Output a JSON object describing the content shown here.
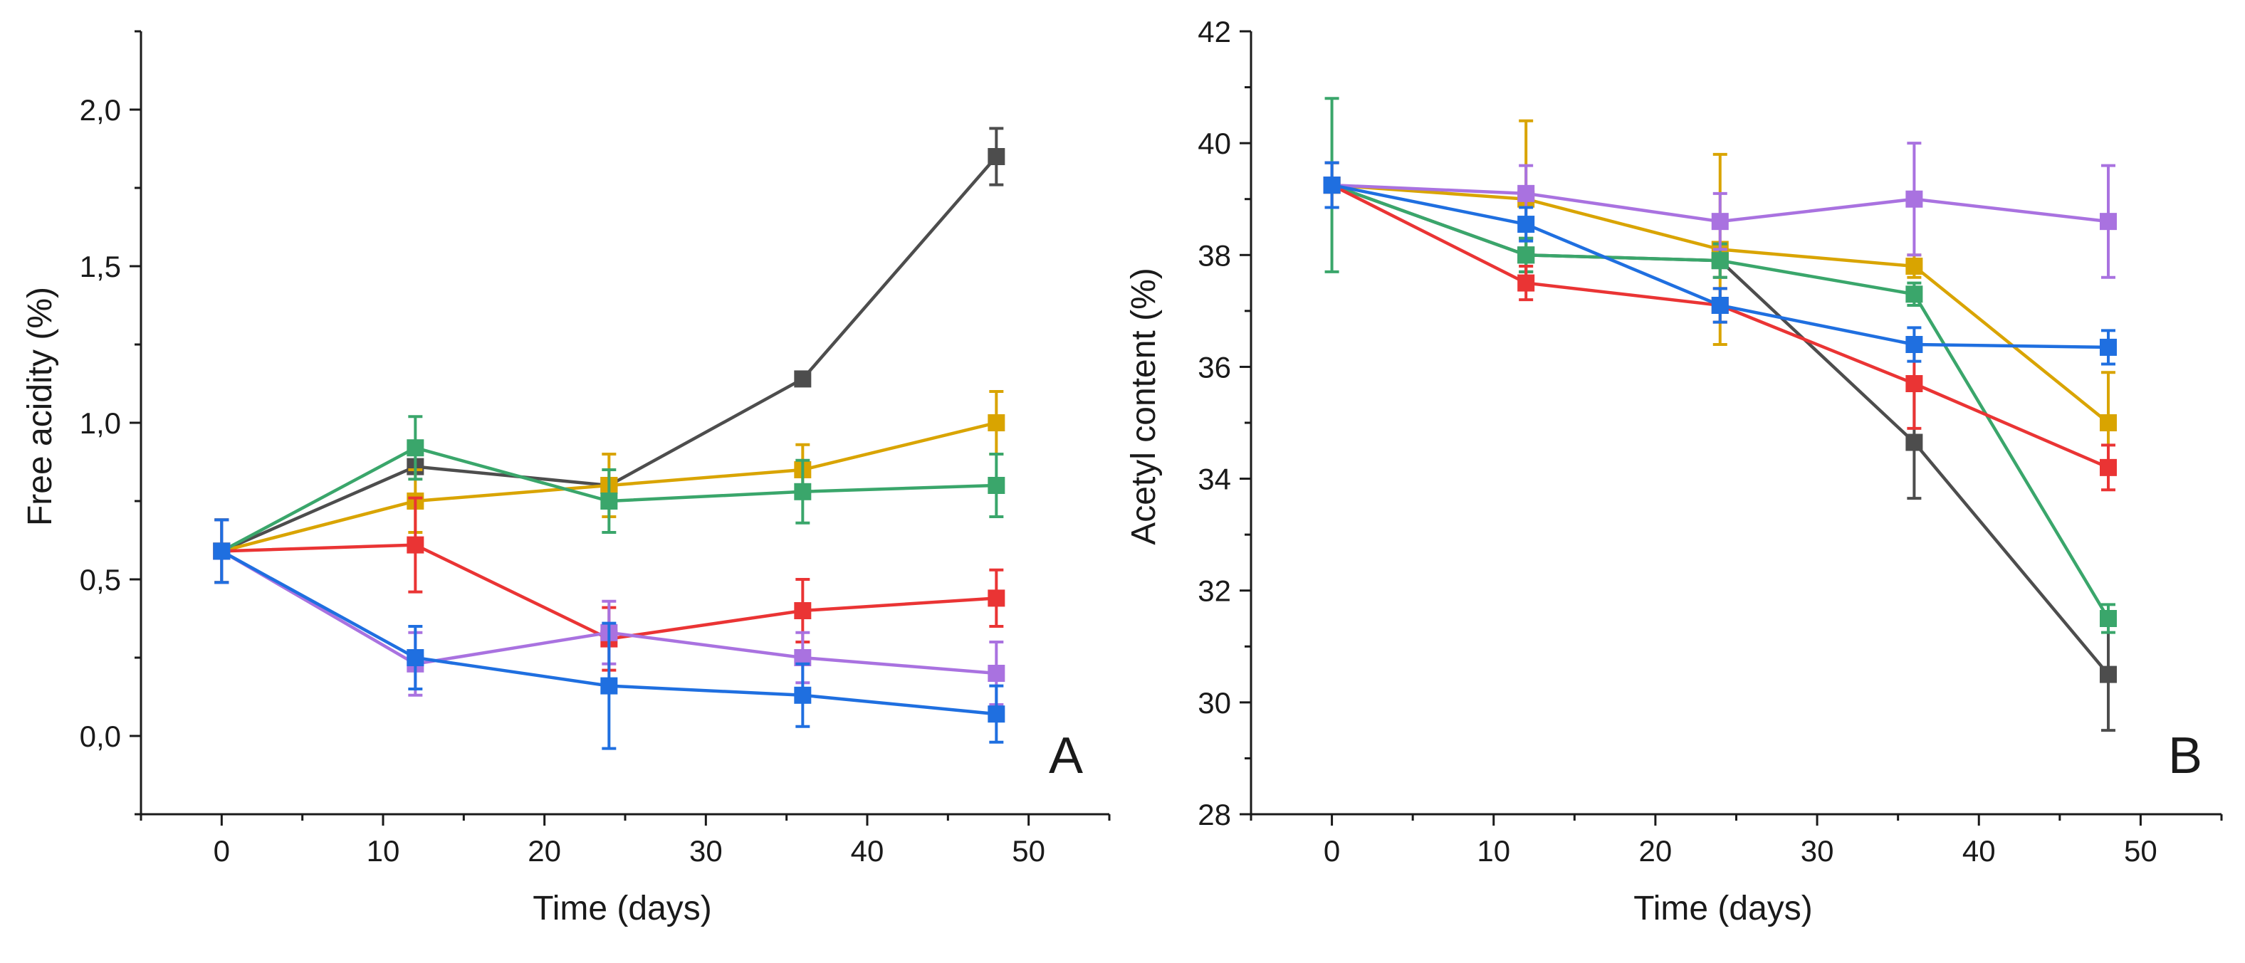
{
  "chart_data": [
    {
      "type": "line",
      "panel_label": "A",
      "xlabel": "Time (days)",
      "ylabel": "Free acidity (%)",
      "xlim": [
        -5,
        55
      ],
      "ylim": [
        -0.25,
        2.25
      ],
      "xticks": [
        0,
        10,
        20,
        30,
        40,
        50
      ],
      "xtick_labels": [
        "0",
        "10",
        "20",
        "30",
        "40",
        "50"
      ],
      "yticks": [
        0.0,
        0.5,
        1.0,
        1.5,
        2.0
      ],
      "ytick_labels": [
        "0,0",
        "0,5",
        "1,0",
        "1,5",
        "2,0"
      ],
      "grid": false,
      "x": [
        0,
        12,
        24,
        36,
        48
      ],
      "series": [
        {
          "color": "#4d4d4d",
          "values": [
            0.59,
            0.86,
            0.8,
            1.14,
            1.85
          ],
          "errors": [
            0.1,
            0.02,
            0.02,
            0.02,
            0.09
          ]
        },
        {
          "color": "#d9a400",
          "values": [
            0.59,
            0.75,
            0.8,
            0.85,
            1.0
          ],
          "errors": [
            0.1,
            0.1,
            0.1,
            0.08,
            0.1
          ]
        },
        {
          "color": "#3aa66b",
          "values": [
            0.59,
            0.92,
            0.75,
            0.78,
            0.8
          ],
          "errors": [
            0.1,
            0.1,
            0.1,
            0.1,
            0.1
          ]
        },
        {
          "color": "#ea3434",
          "values": [
            0.59,
            0.61,
            0.31,
            0.4,
            0.44
          ],
          "errors": [
            0.1,
            0.15,
            0.1,
            0.1,
            0.09
          ]
        },
        {
          "color": "#a972e0",
          "values": [
            0.59,
            0.23,
            0.33,
            0.25,
            0.2
          ],
          "errors": [
            0.1,
            0.1,
            0.1,
            0.08,
            0.1
          ]
        },
        {
          "color": "#1f6fe0",
          "values": [
            0.59,
            0.25,
            0.16,
            0.13,
            0.07
          ],
          "errors": [
            0.1,
            0.1,
            0.2,
            0.1,
            0.09
          ]
        }
      ]
    },
    {
      "type": "line",
      "panel_label": "B",
      "xlabel": "Time (days)",
      "ylabel": "Acetyl content (%)",
      "xlim": [
        -5,
        55
      ],
      "ylim": [
        28,
        42
      ],
      "xticks": [
        0,
        10,
        20,
        30,
        40,
        50
      ],
      "xtick_labels": [
        "0",
        "10",
        "20",
        "30",
        "40",
        "50"
      ],
      "yticks": [
        28,
        30,
        32,
        34,
        36,
        38,
        40,
        42
      ],
      "ytick_labels": [
        "28",
        "30",
        "32",
        "34",
        "36",
        "38",
        "40",
        "42"
      ],
      "grid": false,
      "x": [
        0,
        12,
        24,
        36,
        48
      ],
      "series": [
        {
          "color": "#4d4d4d",
          "values": [
            39.25,
            38.0,
            37.9,
            34.65,
            30.5
          ],
          "errors": [
            0.4,
            0.3,
            0.3,
            1.0,
            1.0
          ]
        },
        {
          "color": "#d9a400",
          "values": [
            39.25,
            39.0,
            38.1,
            37.8,
            35.0
          ],
          "errors": [
            0.4,
            1.4,
            1.7,
            0.2,
            0.9
          ]
        },
        {
          "color": "#3aa66b",
          "values": [
            39.25,
            38.0,
            37.9,
            37.3,
            31.5
          ],
          "errors": [
            1.55,
            0.3,
            0.3,
            0.2,
            0.25
          ]
        },
        {
          "color": "#ea3434",
          "values": [
            39.25,
            37.5,
            37.1,
            35.7,
            34.2
          ],
          "errors": [
            0.4,
            0.3,
            0.3,
            0.8,
            0.4
          ]
        },
        {
          "color": "#a972e0",
          "values": [
            39.25,
            39.1,
            38.6,
            39.0,
            38.6
          ],
          "errors": [
            0.4,
            0.5,
            0.5,
            1.0,
            1.0
          ]
        },
        {
          "color": "#1f6fe0",
          "values": [
            39.25,
            38.55,
            37.1,
            36.4,
            36.35
          ],
          "errors": [
            0.4,
            0.3,
            0.3,
            0.3,
            0.3
          ]
        }
      ]
    }
  ]
}
